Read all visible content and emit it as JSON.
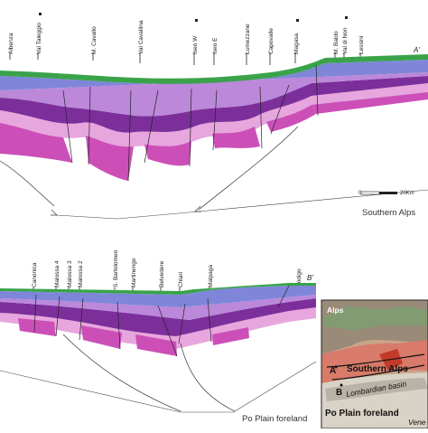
{
  "section_a": {
    "end_label": "A'",
    "caption": "Southern Alps",
    "scale": {
      "zero": "0",
      "end": "20Km"
    },
    "locations": [
      "Albenza",
      "Val Taleggio",
      "M. Cavallo",
      "Val Cavallina",
      "Iseo W",
      "Iseo E",
      "Lumezzane",
      "Capovalle",
      "Magasa",
      "M. Baldo",
      "Val di Non",
      "Lessini"
    ]
  },
  "section_b": {
    "end_label": "B'",
    "caption": "Po Plain foreland",
    "locations": [
      "Canonica",
      "Malossa 4",
      "Malossa 3",
      "Malossa 2",
      "S. Bartolomeo",
      "Martinengo",
      "Belvedere",
      "Chiari",
      "Malpaga",
      "Rodigo"
    ]
  },
  "inset": {
    "alps": "Alps",
    "southern_alps": "Southern Alps",
    "lombardian_basin": "Lombardian basin",
    "po_plain": "Po Plain foreland",
    "point_a": "A",
    "point_b": "B",
    "vene": "Vene"
  },
  "colors": {
    "green": "#3aa34a",
    "blue": "#7f86d9",
    "purple": "#7c2f9b",
    "magenta": "#cc4fb8",
    "pink": "#e7a6dd"
  }
}
